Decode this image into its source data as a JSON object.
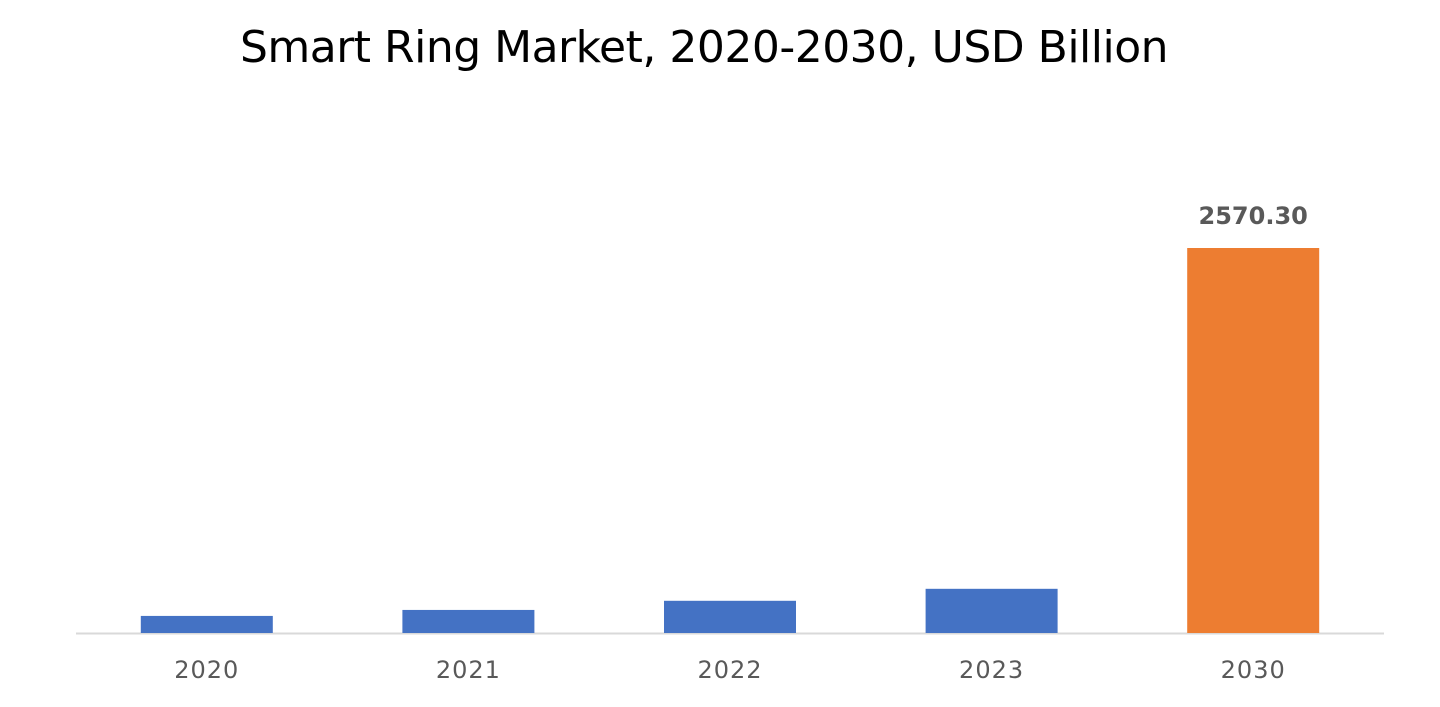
{
  "chart_data": {
    "type": "bar",
    "title": "Smart Ring Market, 2020-2030, USD Billion",
    "xlabel": "",
    "ylabel": "",
    "categories": [
      "2020",
      "2021",
      "2022",
      "2023",
      "2030"
    ],
    "values": [
      114,
      154,
      215,
      295,
      2570.3
    ],
    "data_labels": [
      "",
      "",
      "",
      "",
      "2570.30"
    ],
    "colors": [
      "#4472C4",
      "#4472C4",
      "#4472C4",
      "#4472C4",
      "#ED7D31"
    ],
    "ylim": [
      0,
      2570.3
    ],
    "grid": false,
    "legend": "none",
    "axis_color": "#d9d9d9",
    "tick_label_color": "#595959"
  }
}
